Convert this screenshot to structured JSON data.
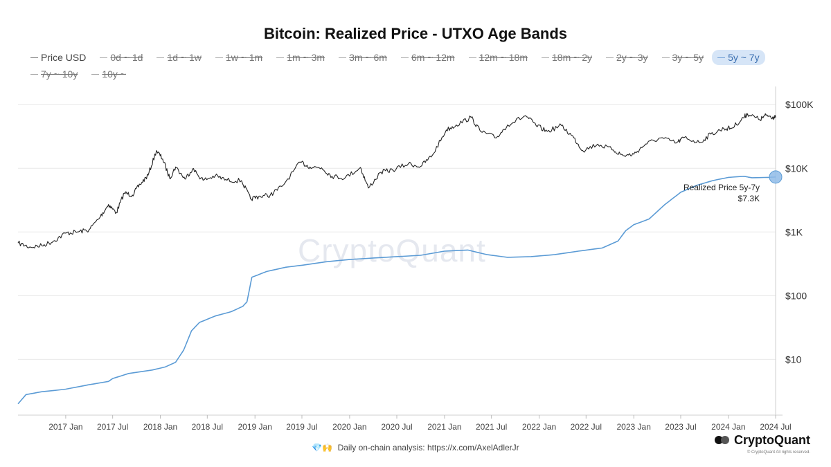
{
  "page": {
    "title": "Bitcoin: Realized Price - UTXO Age Bands",
    "watermark": "CryptoQuant",
    "footer_icons": "💎🙌",
    "footer_text": "Daily on-chain analysis: https://x.com/AxelAdlerJr",
    "brand": "CryptoQuant",
    "copyright": "© CryptoQuant All rights reserved."
  },
  "legend": [
    {
      "label": "Price USD",
      "state": "visible"
    },
    {
      "label": "0d ~ 1d",
      "state": "hidden"
    },
    {
      "label": "1d ~ 1w",
      "state": "hidden"
    },
    {
      "label": "1w ~ 1m",
      "state": "hidden"
    },
    {
      "label": "1m ~ 3m",
      "state": "hidden"
    },
    {
      "label": "3m ~ 6m",
      "state": "hidden"
    },
    {
      "label": "6m ~ 12m",
      "state": "hidden"
    },
    {
      "label": "12m ~ 18m",
      "state": "hidden"
    },
    {
      "label": "18m ~ 2y",
      "state": "hidden"
    },
    {
      "label": "2y ~ 3y",
      "state": "hidden"
    },
    {
      "label": "3y ~ 5y",
      "state": "hidden"
    },
    {
      "label": "5y ~ 7y",
      "state": "selected"
    },
    {
      "label": "7y ~ 10y",
      "state": "hidden"
    },
    {
      "label": "10y ~",
      "state": "hidden"
    }
  ],
  "chart_data": {
    "type": "line",
    "title": "Bitcoin: Realized Price - UTXO Age Bands",
    "y_scale": "log",
    "ylim": [
      1.4,
      150000
    ],
    "y_ticks": [
      {
        "value": 10,
        "label": "$10"
      },
      {
        "value": 100,
        "label": "$100"
      },
      {
        "value": 1000,
        "label": "$1K"
      },
      {
        "value": 10000,
        "label": "$10K"
      },
      {
        "value": 100000,
        "label": "$100K"
      }
    ],
    "xlim": [
      "2016-07-01",
      "2024-07-01"
    ],
    "x_ticks": [
      {
        "date": "2017-01-01",
        "label": "2017 Jan"
      },
      {
        "date": "2017-07-01",
        "label": "2017 Jul"
      },
      {
        "date": "2018-01-01",
        "label": "2018 Jan"
      },
      {
        "date": "2018-07-01",
        "label": "2018 Jul"
      },
      {
        "date": "2019-01-01",
        "label": "2019 Jan"
      },
      {
        "date": "2019-07-01",
        "label": "2019 Jul"
      },
      {
        "date": "2020-01-01",
        "label": "2020 Jan"
      },
      {
        "date": "2020-07-01",
        "label": "2020 Jul"
      },
      {
        "date": "2021-01-01",
        "label": "2021 Jan"
      },
      {
        "date": "2021-07-01",
        "label": "2021 Jul"
      },
      {
        "date": "2022-01-01",
        "label": "2022 Jan"
      },
      {
        "date": "2022-07-01",
        "label": "2022 Jul"
      },
      {
        "date": "2023-01-01",
        "label": "2023 Jan"
      },
      {
        "date": "2023-07-01",
        "label": "2023 Jul"
      },
      {
        "date": "2024-01-01",
        "label": "2024 Jan"
      },
      {
        "date": "2024-07-01",
        "label": "2024 Jul"
      }
    ],
    "grid": {
      "horizontal": true,
      "vertical": false
    },
    "series": [
      {
        "name": "Price USD",
        "color": "#222222",
        "points": [
          [
            "2016-07-01",
            670
          ],
          [
            "2016-08-15",
            580
          ],
          [
            "2016-10-01",
            610
          ],
          [
            "2016-11-15",
            720
          ],
          [
            "2017-01-01",
            960
          ],
          [
            "2017-02-15",
            1000
          ],
          [
            "2017-04-01",
            1080
          ],
          [
            "2017-05-15",
            1750
          ],
          [
            "2017-06-15",
            2700
          ],
          [
            "2017-07-15",
            2000
          ],
          [
            "2017-08-15",
            4100
          ],
          [
            "2017-09-15",
            3800
          ],
          [
            "2017-10-15",
            5600
          ],
          [
            "2017-11-15",
            7800
          ],
          [
            "2017-12-17",
            19000
          ],
          [
            "2018-01-10",
            14000
          ],
          [
            "2018-02-06",
            7000
          ],
          [
            "2018-03-01",
            10500
          ],
          [
            "2018-04-06",
            6800
          ],
          [
            "2018-05-05",
            9800
          ],
          [
            "2018-06-15",
            6500
          ],
          [
            "2018-08-01",
            7600
          ],
          [
            "2018-09-15",
            6500
          ],
          [
            "2018-11-10",
            6400
          ],
          [
            "2018-12-15",
            3300
          ],
          [
            "2019-01-15",
            3600
          ],
          [
            "2019-03-01",
            3800
          ],
          [
            "2019-04-15",
            5200
          ],
          [
            "2019-06-26",
            12500
          ],
          [
            "2019-08-01",
            10500
          ],
          [
            "2019-09-15",
            10200
          ],
          [
            "2019-10-25",
            7500
          ],
          [
            "2019-12-15",
            7100
          ],
          [
            "2020-02-12",
            10300
          ],
          [
            "2020-03-13",
            4900
          ],
          [
            "2020-05-01",
            8700
          ],
          [
            "2020-06-15",
            9400
          ],
          [
            "2020-08-15",
            11800
          ],
          [
            "2020-10-01",
            10700
          ],
          [
            "2020-11-15",
            16000
          ],
          [
            "2021-01-08",
            40000
          ],
          [
            "2021-02-15",
            48000
          ],
          [
            "2021-04-14",
            63000
          ],
          [
            "2021-05-20",
            38000
          ],
          [
            "2021-07-20",
            30000
          ],
          [
            "2021-09-01",
            48000
          ],
          [
            "2021-11-10",
            67000
          ],
          [
            "2021-12-20",
            47000
          ],
          [
            "2022-02-01",
            38000
          ],
          [
            "2022-03-28",
            47000
          ],
          [
            "2022-05-15",
            30000
          ],
          [
            "2022-06-18",
            19000
          ],
          [
            "2022-08-15",
            24000
          ],
          [
            "2022-10-15",
            19300
          ],
          [
            "2022-11-21",
            15800
          ],
          [
            "2023-01-01",
            16600
          ],
          [
            "2023-02-15",
            24000
          ],
          [
            "2023-04-15",
            30000
          ],
          [
            "2023-06-15",
            25000
          ],
          [
            "2023-07-15",
            30500
          ],
          [
            "2023-09-11",
            25200
          ],
          [
            "2023-10-25",
            34500
          ],
          [
            "2023-12-15",
            42000
          ],
          [
            "2024-01-15",
            43000
          ],
          [
            "2024-02-28",
            62000
          ],
          [
            "2024-03-14",
            72000
          ],
          [
            "2024-05-01",
            58000
          ],
          [
            "2024-05-25",
            68000
          ],
          [
            "2024-06-20",
            64000
          ],
          [
            "2024-07-01",
            62000
          ]
        ]
      },
      {
        "name": "5y ~ 7y",
        "color": "#5b9bd5",
        "points": [
          [
            "2016-07-01",
            2.0
          ],
          [
            "2016-08-01",
            2.8
          ],
          [
            "2016-10-01",
            3.1
          ],
          [
            "2017-01-01",
            3.4
          ],
          [
            "2017-04-01",
            4.0
          ],
          [
            "2017-06-15",
            4.5
          ],
          [
            "2017-07-01",
            5.0
          ],
          [
            "2017-09-01",
            6.0
          ],
          [
            "2017-12-01",
            6.8
          ],
          [
            "2018-01-20",
            7.6
          ],
          [
            "2018-03-01",
            9.0
          ],
          [
            "2018-04-01",
            14
          ],
          [
            "2018-05-01",
            28
          ],
          [
            "2018-06-01",
            38
          ],
          [
            "2018-08-01",
            48
          ],
          [
            "2018-10-01",
            56
          ],
          [
            "2018-11-15",
            68
          ],
          [
            "2018-12-01",
            80
          ],
          [
            "2018-12-20",
            195
          ],
          [
            "2019-01-10",
            210
          ],
          [
            "2019-02-15",
            240
          ],
          [
            "2019-05-01",
            280
          ],
          [
            "2019-07-01",
            300
          ],
          [
            "2019-10-01",
            340
          ],
          [
            "2020-01-01",
            370
          ],
          [
            "2020-04-01",
            390
          ],
          [
            "2020-07-01",
            410
          ],
          [
            "2020-10-01",
            430
          ],
          [
            "2021-01-01",
            500
          ],
          [
            "2021-04-01",
            520
          ],
          [
            "2021-06-15",
            440
          ],
          [
            "2021-09-01",
            400
          ],
          [
            "2021-12-01",
            410
          ],
          [
            "2022-03-01",
            440
          ],
          [
            "2022-06-01",
            500
          ],
          [
            "2022-09-01",
            560
          ],
          [
            "2022-11-01",
            720
          ],
          [
            "2022-12-01",
            1050
          ],
          [
            "2023-01-01",
            1300
          ],
          [
            "2023-03-01",
            1600
          ],
          [
            "2023-05-01",
            2700
          ],
          [
            "2023-07-01",
            4200
          ],
          [
            "2023-09-01",
            5400
          ],
          [
            "2023-11-01",
            6400
          ],
          [
            "2024-01-01",
            7200
          ],
          [
            "2024-03-01",
            7500
          ],
          [
            "2024-04-01",
            7100
          ],
          [
            "2024-06-01",
            7200
          ],
          [
            "2024-07-01",
            7300
          ]
        ]
      }
    ],
    "annotation": {
      "series": "5y ~ 7y",
      "date": "2024-07-01",
      "value": 7300,
      "line1": "Realized Price 5y-7y",
      "line2": "$7.3K"
    }
  }
}
